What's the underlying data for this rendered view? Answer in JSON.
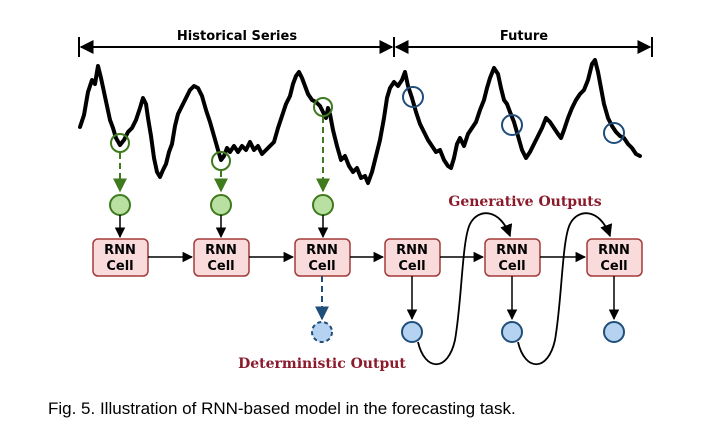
{
  "brackets": {
    "historical_label": "Historical Series",
    "future_label": "Future"
  },
  "cells": [
    {
      "line1": "RNN",
      "line2": "Cell"
    },
    {
      "line1": "RNN",
      "line2": "Cell"
    },
    {
      "line1": "RNN",
      "line2": "Cell"
    },
    {
      "line1": "RNN",
      "line2": "Cell"
    },
    {
      "line1": "RNN",
      "line2": "Cell"
    },
    {
      "line1": "RNN",
      "line2": "Cell"
    }
  ],
  "labels": {
    "generative": "Generative Outputs",
    "deterministic": "Deterministic Output"
  },
  "caption": "Fig. 5. Illustration of RNN-based model in the forecasting task.",
  "colors": {
    "cell_fill": "#f9dbdc",
    "cell_stroke": "#a33a3a",
    "input_fill": "#b9e0a0",
    "input_stroke": "#3f7a1e",
    "output_fill": "#b5d3f0",
    "output_stroke": "#1f4e7a",
    "label_red": "#8b1a2b"
  }
}
